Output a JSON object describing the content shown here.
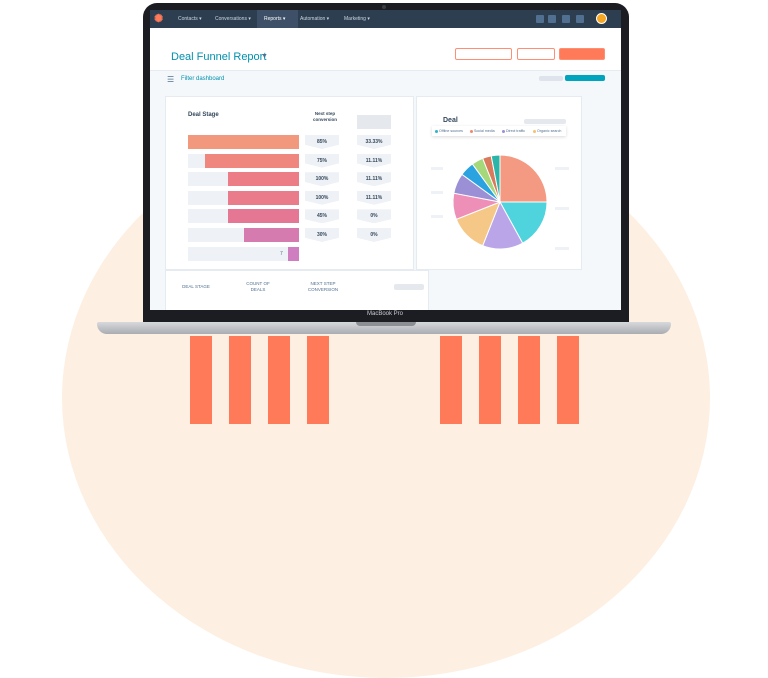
{
  "nav": {
    "items": [
      "Contacts",
      "Conversations",
      "Reports",
      "Automation",
      "Marketing"
    ],
    "active": "Reports"
  },
  "header": {
    "title": "Deal Funnel Report",
    "filter_label": "Filter dashboard"
  },
  "funnel": {
    "title": "Deal Stage",
    "conversion_header": "Next step conversion",
    "final_value": "7",
    "bars": [
      {
        "level": 1.0,
        "color": "#f2997d",
        "conversion": "85%",
        "overall": "33.33%"
      },
      {
        "level": 0.85,
        "color": "#f0877e",
        "conversion": "75%",
        "overall": "11.11%"
      },
      {
        "level": 0.64,
        "color": "#ec7d86",
        "conversion": "100%",
        "overall": "11.11%"
      },
      {
        "level": 0.64,
        "color": "#ea7b8a",
        "conversion": "100%",
        "overall": "11.11%"
      },
      {
        "level": 0.64,
        "color": "#e57795",
        "conversion": "45%",
        "overall": "0%"
      },
      {
        "level": 0.5,
        "color": "#d57bb0",
        "conversion": "30%",
        "overall": "0%"
      },
      {
        "level": 0.1,
        "color": "#cf7fc0",
        "conversion": "",
        "overall": ""
      }
    ]
  },
  "table": {
    "headers": [
      "DEAL STAGE",
      "COUNT OF DEALS",
      "NEXT STEP CONVERSION"
    ]
  },
  "device": {
    "label": "MacBook Pro"
  },
  "chart_data": {
    "type": "pie",
    "title": "Deal",
    "legend": [
      "Offline sources",
      "Social media",
      "Direct traffic",
      "Organic search"
    ],
    "legend_colors": [
      "#2bb5c8",
      "#f5866c",
      "#9b8fd6",
      "#f5c26b"
    ],
    "slices": [
      {
        "value": 25,
        "color": "#f59a82"
      },
      {
        "value": 17,
        "color": "#4fd3dc"
      },
      {
        "value": 14,
        "color": "#b9a5e8"
      },
      {
        "value": 13,
        "color": "#f5c887"
      },
      {
        "value": 9,
        "color": "#ee8fb7"
      },
      {
        "value": 7,
        "color": "#9b8fd6"
      },
      {
        "value": 5,
        "color": "#2aa3e0"
      },
      {
        "value": 4,
        "color": "#a4d87a"
      },
      {
        "value": 3,
        "color": "#d97a5c"
      },
      {
        "value": 3,
        "color": "#2bb5a8"
      }
    ]
  }
}
